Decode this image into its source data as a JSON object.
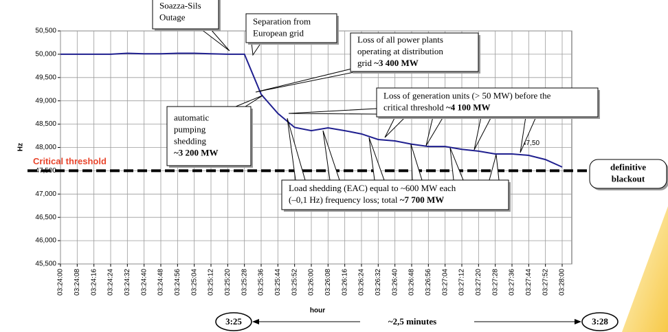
{
  "chart_data": {
    "type": "line",
    "y_label": "Hz",
    "x_label": "hour",
    "categories": [
      "03:24:00",
      "03:24:08",
      "03:24:16",
      "03:24:24",
      "03:24:32",
      "03:24:40",
      "03:24:48",
      "03:24:56",
      "03:25:04",
      "03:25:12",
      "03:25:20",
      "03:25:28",
      "03:25:36",
      "03:25:44",
      "03:25:52",
      "03:26:00",
      "03:26:08",
      "03:26:16",
      "03:26:24",
      "03:26:32",
      "03:26:40",
      "03:26:48",
      "03:26:56",
      "03:27:04",
      "03:27:12",
      "03:27:20",
      "03:27:28",
      "03:27:36",
      "03:27:44",
      "03:27:52",
      "03:28:00"
    ],
    "series": [
      {
        "color": "#1f1f8f",
        "values": [
          50.0,
          50.0,
          50.0,
          50.0,
          50.02,
          50.01,
          50.01,
          50.02,
          50.02,
          50.01,
          50.0,
          50.0,
          49.14,
          48.73,
          48.43,
          48.36,
          48.42,
          48.36,
          48.29,
          48.17,
          48.14,
          48.07,
          48.02,
          48.02,
          47.96,
          47.92,
          47.86,
          47.86,
          47.83,
          47.74,
          47.58
        ]
      }
    ],
    "ylim": [
      45.5,
      50.5
    ],
    "yticks": [
      {
        "value": 45.5,
        "label": "45,500"
      },
      {
        "value": 46,
        "label": "46,000"
      },
      {
        "value": 46.5,
        "label": "46,500"
      },
      {
        "value": 47,
        "label": "47,000"
      },
      {
        "value": 47.5,
        "label": "47,500"
      },
      {
        "value": 48,
        "label": "48,000"
      },
      {
        "value": 48.5,
        "label": "48,500"
      },
      {
        "value": 49,
        "label": "49,000"
      },
      {
        "value": 49.5,
        "label": "49,500"
      },
      {
        "value": 50,
        "label": "50,000"
      },
      {
        "value": 50.5,
        "label": "50,500"
      }
    ],
    "grid": true,
    "threshold": {
      "value": 47.5,
      "label": "Critical threshold",
      "color": "#e8452c"
    },
    "end_label": {
      "value": 47.5,
      "label": "47,50"
    },
    "annotations": [
      {
        "lines": [
          "Soazza-Sils",
          "Outage"
        ]
      },
      {
        "lines": [
          "Separation from",
          "European grid"
        ]
      },
      {
        "lines": [
          "Loss of all power plants",
          "operating at distribution",
          "grid "
        ],
        "bold": "~3 400 MW"
      },
      {
        "lines": [
          "automatic",
          "pumping",
          "shedding",
          ""
        ],
        "bold": "~3 200 MW"
      },
      {
        "lines": [
          "Loss of generation units (> 50 MW) before the",
          "critical threshold "
        ],
        "bold": "~4 100 MW"
      },
      {
        "lines": [
          "Load shedding (EAC) equal to ~600 MW each",
          "(–0,1 Hz) frequency loss; total "
        ],
        "bold": "~7 700 MW"
      },
      {
        "lines": [
          "definitive",
          "blackout"
        ]
      }
    ],
    "span": {
      "start": "3:25",
      "label": "~2,5 minutes",
      "end": "3:28"
    }
  }
}
